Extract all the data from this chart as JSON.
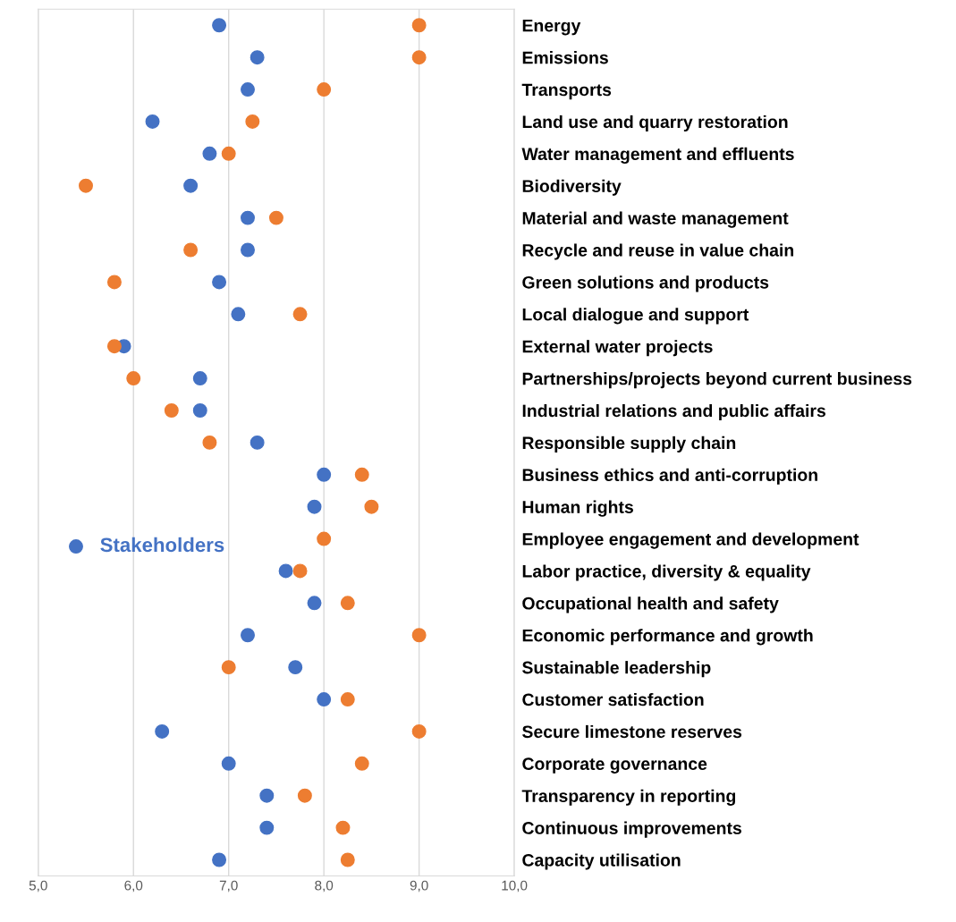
{
  "chart_data": {
    "type": "scatter",
    "orientation": "horizontal",
    "categories": [
      "Energy",
      "Emissions",
      "Transports",
      "Land use and quarry restoration",
      "Water management and effluents",
      "Biodiversity",
      "Material and waste management",
      "Recycle and reuse in value chain",
      "Green solutions and products",
      "Local dialogue and support",
      "External water projects",
      "Partnerships/projects beyond current business",
      "Industrial relations and public affairs",
      "Responsible supply chain",
      "Business ethics and anti-corruption",
      "Human rights",
      "Employee engagement and development",
      "Labor practice, diversity & equality",
      "Occupational health and safety",
      "Economic performance and growth",
      "Sustainable leadership",
      "Customer satisfaction",
      "Secure limestone reserves",
      "Corporate governance",
      "Transparency in reporting",
      "Continuous improvements",
      "Capacity utilisation"
    ],
    "series": [
      {
        "name": "Stakeholders",
        "color": "#4472c4",
        "values": [
          6.9,
          7.3,
          7.2,
          6.2,
          6.8,
          6.6,
          7.2,
          7.2,
          6.9,
          7.1,
          5.9,
          6.7,
          6.7,
          7.3,
          8.0,
          7.9,
          null,
          7.6,
          7.9,
          7.2,
          7.7,
          8.0,
          6.3,
          7.0,
          7.4,
          7.4,
          6.9
        ]
      },
      {
        "color": "#ed7d31",
        "values": [
          9.0,
          9.0,
          8.0,
          7.25,
          7.0,
          5.5,
          7.5,
          6.6,
          5.8,
          7.75,
          5.8,
          6.0,
          6.4,
          6.8,
          8.4,
          8.5,
          8.0,
          7.75,
          8.25,
          9.0,
          7.0,
          8.25,
          9.0,
          8.4,
          7.8,
          8.2,
          8.25
        ]
      }
    ],
    "xlim": [
      5,
      10
    ],
    "xticks": [
      {
        "value": 5,
        "label": "5,0"
      },
      {
        "value": 6,
        "label": "6,0"
      },
      {
        "value": 7,
        "label": "7,0"
      },
      {
        "value": 8,
        "label": "8,0"
      },
      {
        "value": 9,
        "label": "9,0"
      },
      {
        "value": 10,
        "label": "10,0"
      }
    ],
    "grid": "x",
    "legend": "left",
    "marker": "circle"
  }
}
